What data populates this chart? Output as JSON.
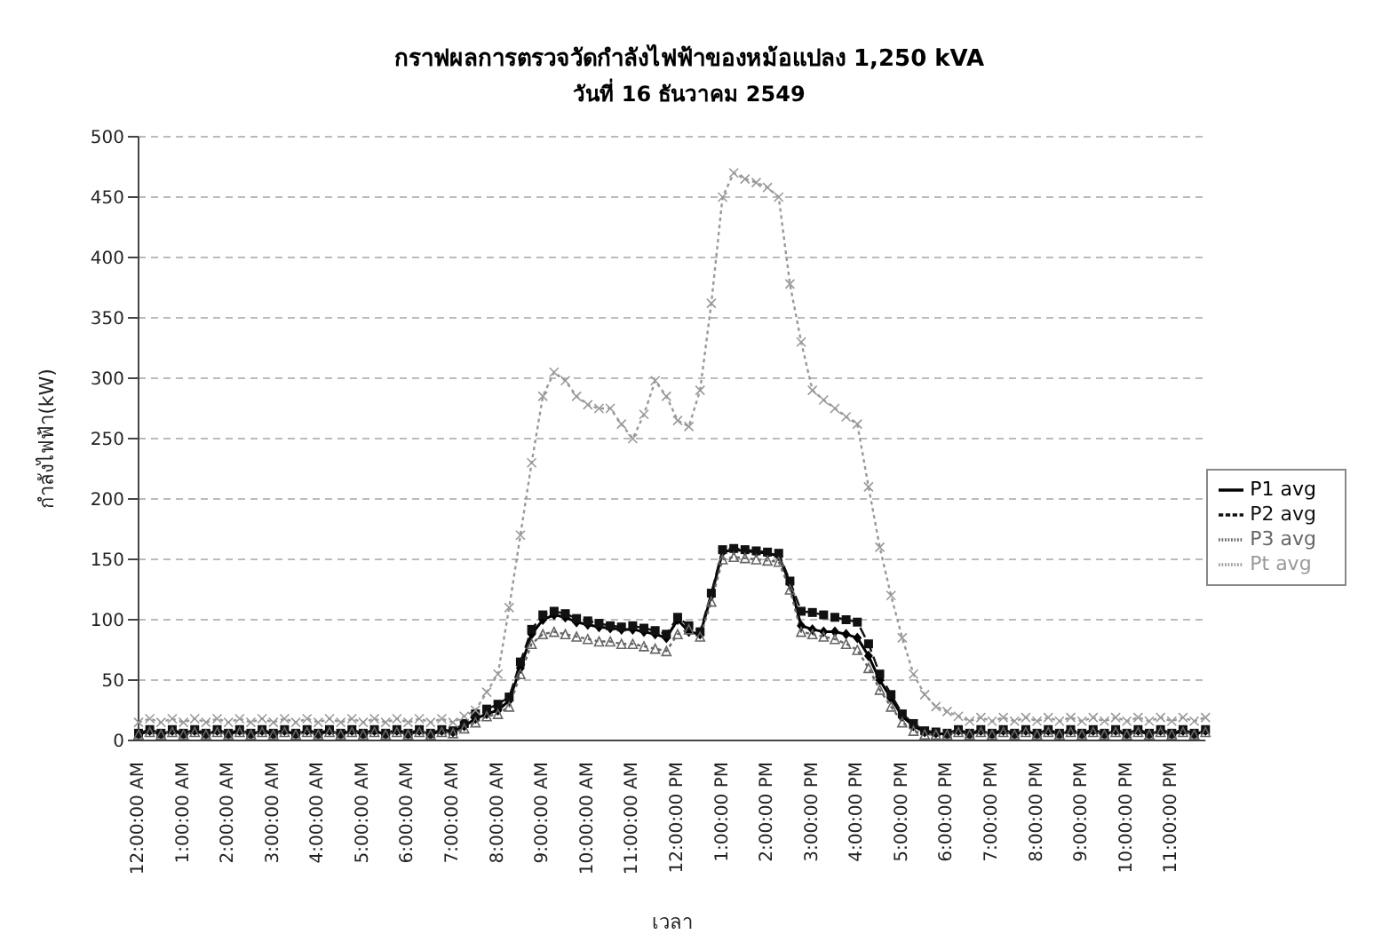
{
  "chart_data": {
    "type": "line",
    "title": "กราฟผลการตรวจวัดกำลังไฟฟ้าของหม้อแปลง 1,250 kVA",
    "subtitle": "วันที่ 16 ธันวาคม 2549",
    "xlabel": "เวลา",
    "ylabel": "กำลังไฟฟ้า(kW)",
    "categories": [
      "12:00:00 AM",
      null,
      null,
      null,
      "1:00:00 AM",
      null,
      null,
      null,
      "2:00:00 AM",
      null,
      null,
      null,
      "3:00:00 AM",
      null,
      null,
      null,
      "4:00:00 AM",
      null,
      null,
      null,
      "5:00:00 AM",
      null,
      null,
      null,
      "6:00:00 AM",
      null,
      null,
      null,
      "7:00:00 AM",
      null,
      null,
      null,
      "8:00:00 AM",
      null,
      null,
      null,
      "9:00:00 AM",
      null,
      null,
      null,
      "10:00:00 AM",
      null,
      null,
      null,
      "11:00:00 AM",
      null,
      null,
      null,
      "12:00:00 PM",
      null,
      null,
      null,
      "1:00:00 PM",
      null,
      null,
      null,
      "2:00:00 PM",
      null,
      null,
      null,
      "3:00:00 PM",
      null,
      null,
      null,
      "4:00:00 PM",
      null,
      null,
      null,
      "5:00:00 PM",
      null,
      null,
      null,
      "6:00:00 PM",
      null,
      null,
      null,
      "7:00:00 PM",
      null,
      null,
      null,
      "8:00:00 PM",
      null,
      null,
      null,
      "9:00:00 PM",
      null,
      null,
      null,
      "10:00:00 PM",
      null,
      null,
      null,
      "11:00:00 PM",
      null,
      null,
      null
    ],
    "series": [
      {
        "name": "P1 avg",
        "color": "#000000",
        "marker": "diamond",
        "line_style": "solid",
        "values": [
          5,
          8,
          5,
          8,
          5,
          8,
          5,
          8,
          5,
          8,
          5,
          8,
          5,
          8,
          5,
          8,
          5,
          8,
          5,
          8,
          5,
          8,
          5,
          8,
          5,
          8,
          5,
          8,
          7,
          12,
          18,
          22,
          25,
          33,
          60,
          88,
          100,
          104,
          102,
          98,
          96,
          94,
          93,
          92,
          92,
          90,
          88,
          85,
          100,
          90,
          88,
          120,
          156,
          158,
          157,
          156,
          155,
          153,
          130,
          95,
          92,
          90,
          90,
          88,
          85,
          70,
          50,
          35,
          20,
          12,
          7,
          6,
          5,
          8,
          5,
          8,
          5,
          8,
          5,
          8,
          5,
          8,
          5,
          8,
          5,
          8,
          5,
          8,
          5,
          8,
          5,
          8,
          5,
          8,
          5,
          8
        ]
      },
      {
        "name": "P2 avg",
        "color": "#111111",
        "marker": "square",
        "line_style": "dashed",
        "values": [
          6,
          9,
          6,
          9,
          6,
          9,
          6,
          9,
          6,
          9,
          6,
          9,
          6,
          9,
          6,
          9,
          6,
          9,
          6,
          9,
          6,
          9,
          6,
          9,
          6,
          9,
          6,
          9,
          8,
          14,
          22,
          26,
          30,
          36,
          65,
          92,
          104,
          107,
          105,
          101,
          99,
          97,
          95,
          94,
          95,
          93,
          91,
          88,
          102,
          95,
          90,
          122,
          158,
          159,
          158,
          157,
          156,
          155,
          132,
          107,
          106,
          104,
          102,
          100,
          98,
          80,
          55,
          38,
          22,
          14,
          8,
          7,
          6,
          9,
          6,
          9,
          6,
          9,
          6,
          9,
          6,
          9,
          6,
          9,
          6,
          9,
          6,
          9,
          6,
          9,
          6,
          9,
          6,
          9,
          6,
          9
        ]
      },
      {
        "name": "P3 avg",
        "color": "#666666",
        "marker": "triangle",
        "line_style": "dotted",
        "values": [
          5,
          7,
          5,
          7,
          5,
          7,
          5,
          7,
          5,
          7,
          5,
          7,
          5,
          7,
          5,
          7,
          5,
          7,
          5,
          7,
          5,
          7,
          5,
          7,
          5,
          7,
          5,
          7,
          6,
          10,
          15,
          20,
          22,
          28,
          55,
          80,
          88,
          90,
          88,
          86,
          84,
          82,
          82,
          80,
          80,
          78,
          76,
          74,
          88,
          92,
          86,
          115,
          150,
          152,
          151,
          150,
          149,
          148,
          125,
          90,
          88,
          86,
          84,
          80,
          75,
          60,
          42,
          28,
          15,
          8,
          5,
          5,
          5,
          7,
          5,
          7,
          5,
          7,
          5,
          7,
          5,
          7,
          5,
          7,
          5,
          7,
          5,
          7,
          5,
          7,
          5,
          7,
          5,
          7,
          5,
          7
        ]
      },
      {
        "name": "Pt avg",
        "color": "#999999",
        "marker": "cross",
        "line_style": "dotted",
        "values": [
          15,
          18,
          15,
          18,
          15,
          18,
          15,
          18,
          15,
          18,
          15,
          18,
          15,
          18,
          15,
          18,
          15,
          18,
          15,
          18,
          15,
          18,
          15,
          18,
          15,
          18,
          15,
          18,
          15,
          20,
          25,
          40,
          55,
          110,
          170,
          230,
          285,
          305,
          298,
          285,
          278,
          275,
          275,
          262,
          250,
          270,
          298,
          285,
          265,
          260,
          290,
          362,
          450,
          470,
          465,
          462,
          458,
          450,
          378,
          330,
          290,
          282,
          275,
          268,
          262,
          210,
          160,
          120,
          85,
          55,
          38,
          28,
          24,
          20,
          16,
          19,
          16,
          19,
          16,
          19,
          16,
          19,
          16,
          19,
          16,
          19,
          16,
          19,
          16,
          19,
          16,
          19,
          16,
          19,
          16,
          19
        ]
      }
    ],
    "ylim": [
      0,
      500
    ],
    "yticks": [
      0,
      50,
      100,
      150,
      200,
      250,
      300,
      350,
      400,
      450,
      500
    ],
    "grid": "y",
    "legend": "right"
  }
}
